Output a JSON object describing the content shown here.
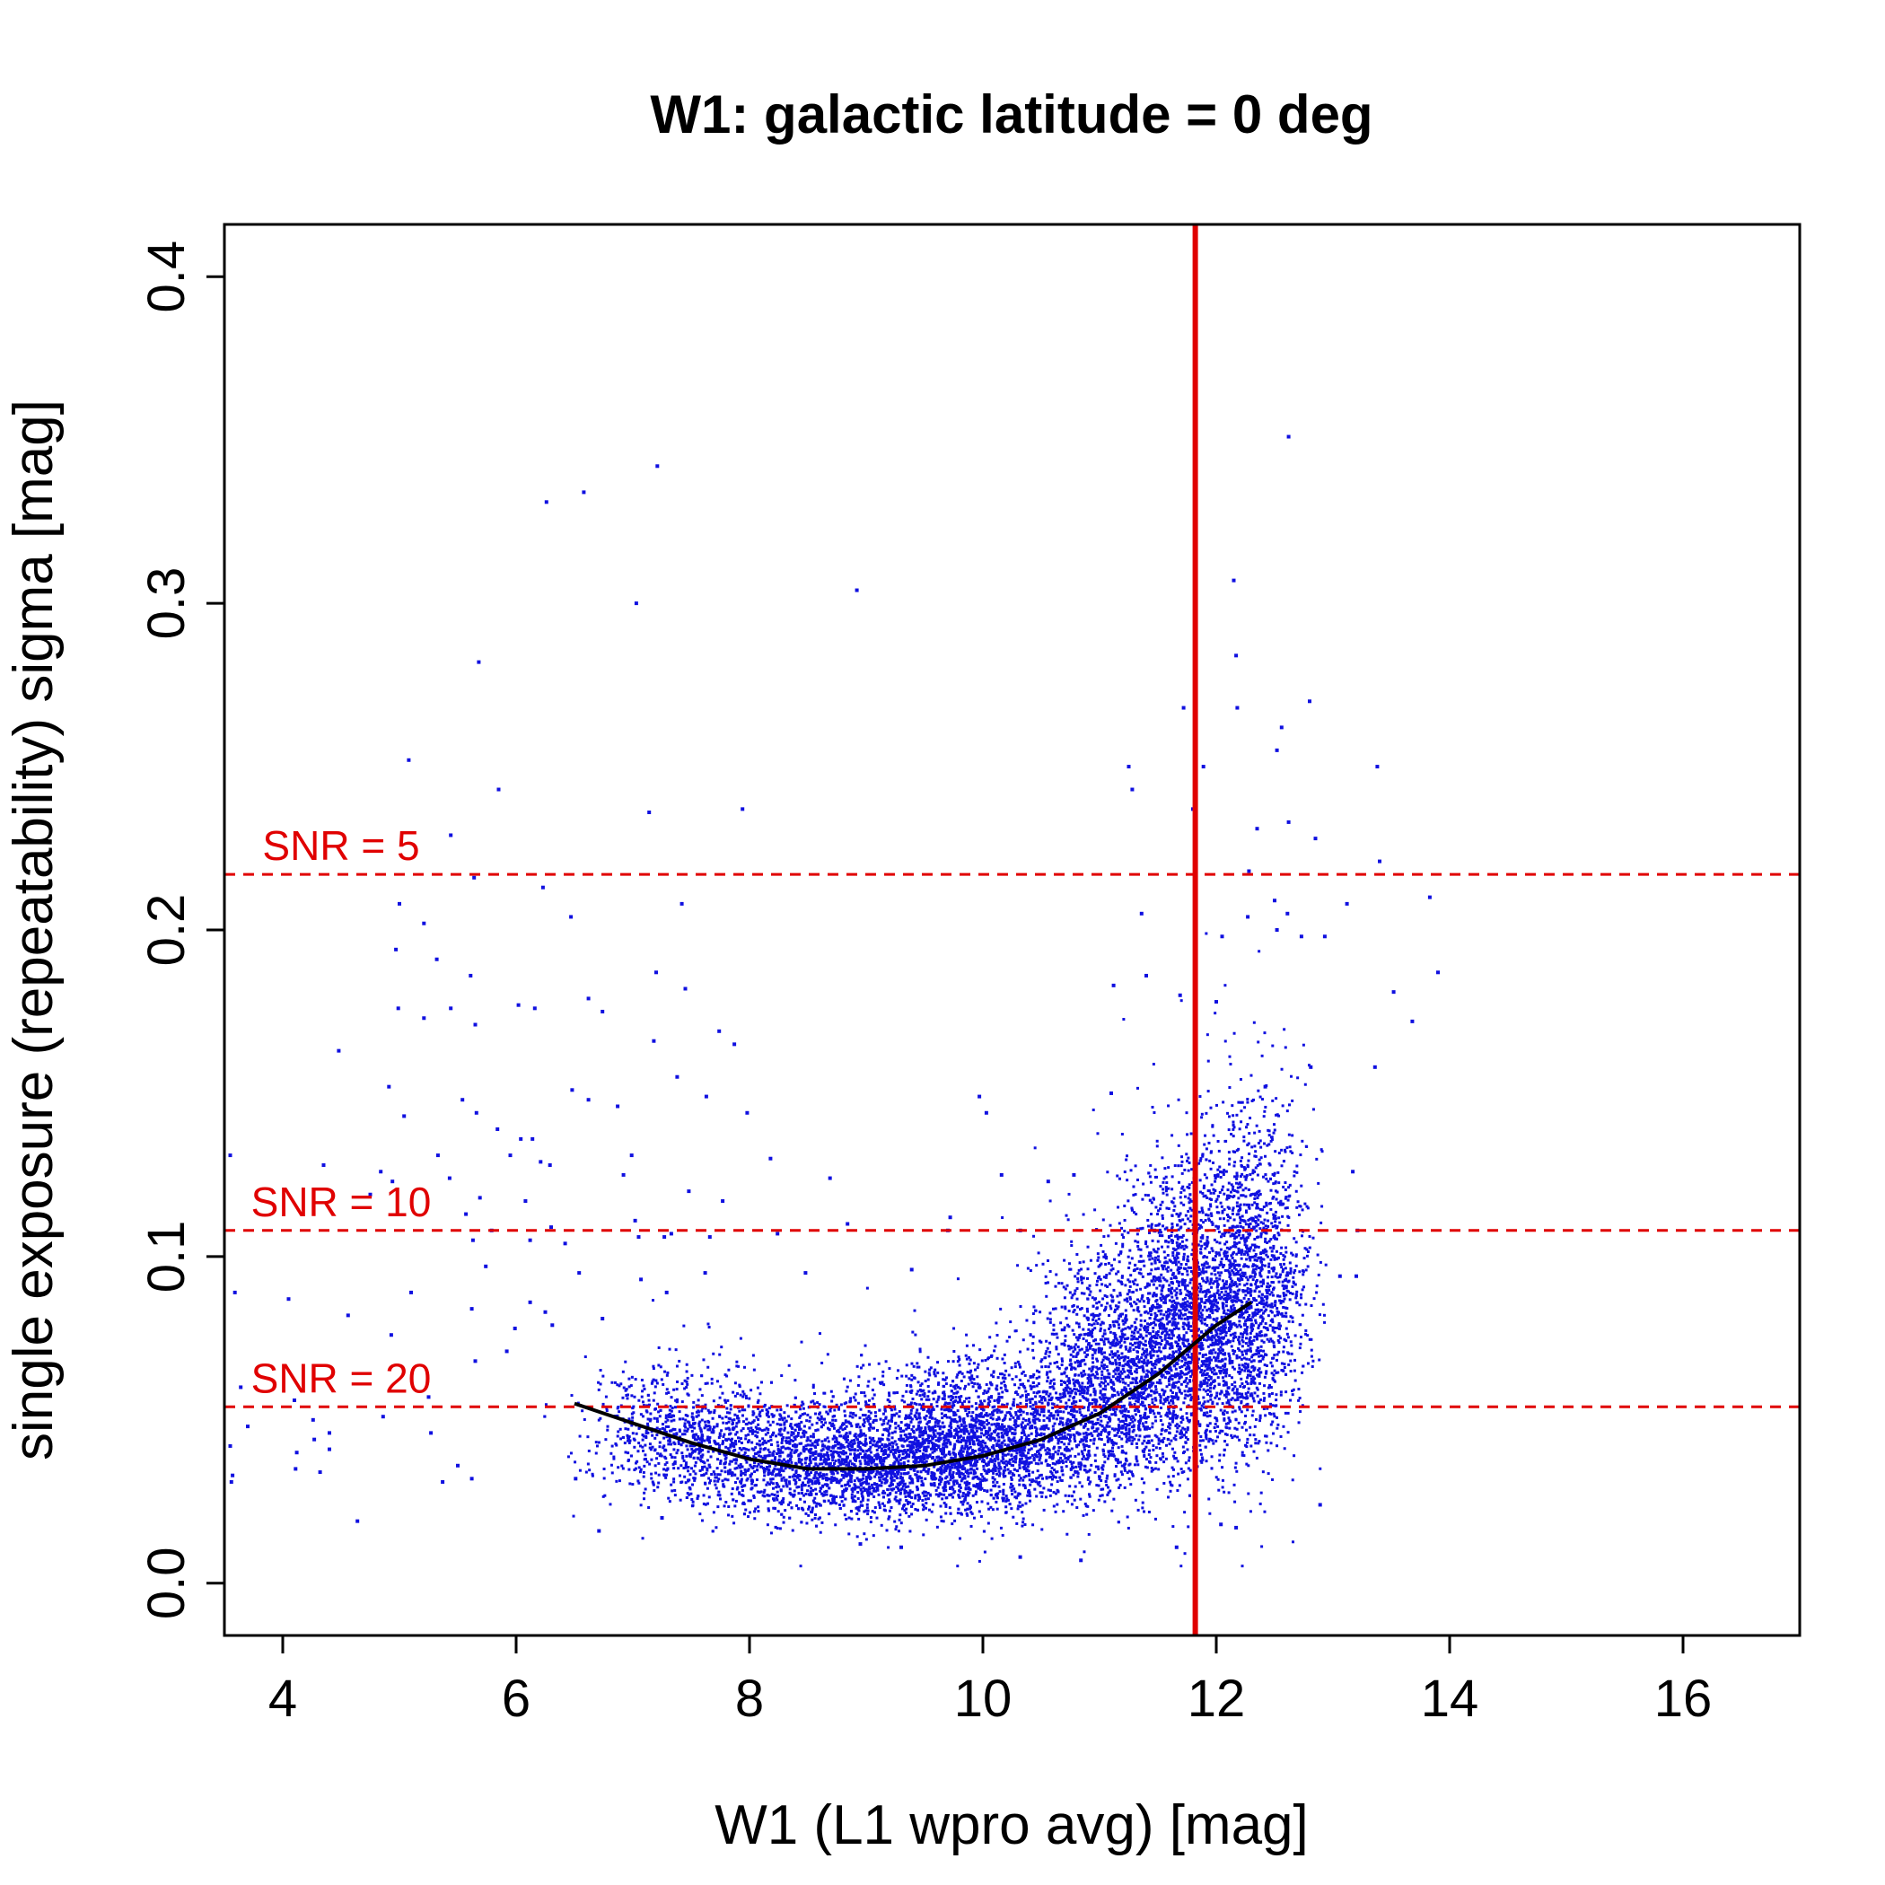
{
  "chart_data": {
    "type": "scatter",
    "title": "W1: galactic latitude = 0 deg",
    "xlabel": "W1 (L1 wpro avg) [mag]",
    "ylabel": "single exposure (repeatability) sigma [mag]",
    "xlim": [
      3.5,
      17.0
    ],
    "ylim": [
      -0.016,
      0.416
    ],
    "x_ticks": [
      4,
      6,
      8,
      10,
      12,
      14,
      16
    ],
    "x_tick_labels": [
      "4",
      "6",
      "8",
      "10",
      "12",
      "14",
      "16"
    ],
    "y_ticks": [
      0.0,
      0.1,
      0.2,
      0.3,
      0.4
    ],
    "y_tick_labels": [
      "0.0",
      "0.1",
      "0.2",
      "0.3",
      "0.4"
    ],
    "grid": false,
    "series": [
      {
        "kind": "points",
        "color": "#1010e0",
        "points": [
          [
            6.26,
            0.331
          ],
          [
            6.58,
            0.334
          ],
          [
            7.21,
            0.342
          ],
          [
            12.62,
            0.351
          ],
          [
            7.03,
            0.3
          ],
          [
            8.92,
            0.304
          ],
          [
            12.15,
            0.307
          ],
          [
            5.68,
            0.282
          ],
          [
            12.17,
            0.284
          ],
          [
            12.18,
            0.268
          ],
          [
            12.8,
            0.27
          ],
          [
            11.72,
            0.268
          ],
          [
            5.08,
            0.252
          ],
          [
            12.52,
            0.255
          ],
          [
            12.56,
            0.262
          ],
          [
            11.25,
            0.25
          ],
          [
            11.89,
            0.25
          ],
          [
            13.38,
            0.25
          ],
          [
            5.85,
            0.243
          ],
          [
            7.94,
            0.237
          ],
          [
            7.14,
            0.236
          ],
          [
            11.28,
            0.243
          ],
          [
            11.8,
            0.237
          ],
          [
            5.44,
            0.229
          ],
          [
            12.62,
            0.233
          ],
          [
            12.85,
            0.228
          ],
          [
            13.4,
            0.221
          ],
          [
            12.35,
            0.231
          ],
          [
            6.23,
            0.213
          ],
          [
            5.64,
            0.216
          ],
          [
            12.28,
            0.218
          ],
          [
            11.36,
            0.205
          ],
          [
            5.0,
            0.208
          ],
          [
            6.47,
            0.204
          ],
          [
            7.42,
            0.208
          ],
          [
            13.12,
            0.208
          ],
          [
            13.83,
            0.21
          ],
          [
            12.27,
            0.204
          ],
          [
            5.21,
            0.202
          ],
          [
            12.5,
            0.209
          ],
          [
            12.61,
            0.205
          ],
          [
            4.97,
            0.194
          ],
          [
            5.32,
            0.191
          ],
          [
            5.61,
            0.186
          ],
          [
            12.73,
            0.198
          ],
          [
            12.93,
            0.198
          ],
          [
            12.52,
            0.2
          ],
          [
            7.2,
            0.187
          ],
          [
            13.9,
            0.187
          ],
          [
            11.4,
            0.186
          ],
          [
            12.05,
            0.198
          ],
          [
            5.44,
            0.176
          ],
          [
            4.99,
            0.176
          ],
          [
            5.21,
            0.173
          ],
          [
            5.65,
            0.171
          ],
          [
            6.02,
            0.177
          ],
          [
            6.16,
            0.176
          ],
          [
            6.62,
            0.179
          ],
          [
            6.74,
            0.175
          ],
          [
            7.45,
            0.182
          ],
          [
            13.52,
            0.181
          ],
          [
            13.68,
            0.172
          ],
          [
            11.12,
            0.183
          ],
          [
            11.69,
            0.18
          ],
          [
            12.0,
            0.178
          ],
          [
            7.18,
            0.166
          ],
          [
            7.87,
            0.165
          ],
          [
            4.48,
            0.163
          ],
          [
            7.74,
            0.169
          ],
          [
            4.91,
            0.152
          ],
          [
            7.38,
            0.155
          ],
          [
            6.48,
            0.151
          ],
          [
            5.54,
            0.148
          ],
          [
            7.63,
            0.149
          ],
          [
            9.97,
            0.149
          ],
          [
            11.1,
            0.15
          ],
          [
            12.81,
            0.158
          ],
          [
            13.36,
            0.158
          ],
          [
            12.42,
            0.152
          ],
          [
            5.66,
            0.144
          ],
          [
            5.04,
            0.143
          ],
          [
            6.62,
            0.148
          ],
          [
            6.87,
            0.146
          ],
          [
            7.98,
            0.144
          ],
          [
            10.03,
            0.144
          ],
          [
            5.84,
            0.139
          ],
          [
            6.14,
            0.136
          ],
          [
            5.95,
            0.131
          ],
          [
            3.55,
            0.131
          ],
          [
            5.33,
            0.131
          ],
          [
            4.35,
            0.128
          ],
          [
            4.84,
            0.126
          ],
          [
            6.29,
            0.128
          ],
          [
            6.21,
            0.129
          ],
          [
            6.04,
            0.136
          ],
          [
            6.99,
            0.131
          ],
          [
            8.18,
            0.13
          ],
          [
            10.78,
            0.125
          ],
          [
            13.17,
            0.126
          ],
          [
            10.16,
            0.125
          ],
          [
            7.48,
            0.12
          ],
          [
            7.77,
            0.117
          ],
          [
            10.56,
            0.123
          ],
          [
            4.94,
            0.123
          ],
          [
            4.75,
            0.119
          ],
          [
            5.43,
            0.124
          ],
          [
            6.92,
            0.125
          ],
          [
            5.69,
            0.118
          ],
          [
            6.08,
            0.117
          ],
          [
            8.69,
            0.124
          ],
          [
            5.57,
            0.113
          ],
          [
            5.79,
            0.108
          ],
          [
            6.12,
            0.105
          ],
          [
            6.42,
            0.104
          ],
          [
            6.3,
            0.109
          ],
          [
            5.63,
            0.105
          ],
          [
            7.05,
            0.106
          ],
          [
            7.33,
            0.107
          ],
          [
            7.02,
            0.111
          ],
          [
            7.27,
            0.106
          ],
          [
            7.66,
            0.106
          ],
          [
            8.24,
            0.107
          ],
          [
            8.84,
            0.11
          ],
          [
            9.7,
            0.108
          ],
          [
            9.72,
            0.112
          ],
          [
            10.32,
            0.108
          ],
          [
            11.47,
            0.108
          ],
          [
            13.21,
            0.108
          ],
          [
            7.62,
            0.095
          ],
          [
            3.59,
            0.089
          ],
          [
            4.05,
            0.087
          ],
          [
            5.1,
            0.089
          ],
          [
            5.74,
            0.097
          ],
          [
            6.12,
            0.086
          ],
          [
            6.25,
            0.083
          ],
          [
            6.54,
            0.095
          ],
          [
            7.07,
            0.093
          ],
          [
            7.29,
            0.089
          ],
          [
            8.48,
            0.095
          ],
          [
            9.39,
            0.096
          ],
          [
            13.06,
            0.094
          ],
          [
            13.2,
            0.094
          ],
          [
            4.56,
            0.082
          ],
          [
            5.62,
            0.084
          ],
          [
            6.31,
            0.079
          ],
          [
            6.74,
            0.081
          ],
          [
            5.99,
            0.078
          ],
          [
            4.93,
            0.076
          ],
          [
            3.64,
            0.06
          ],
          [
            4.1,
            0.056
          ],
          [
            5.92,
            0.071
          ],
          [
            5.65,
            0.068
          ],
          [
            5.25,
            0.057
          ],
          [
            4.86,
            0.051
          ],
          [
            4.26,
            0.05
          ],
          [
            3.7,
            0.048
          ],
          [
            4.4,
            0.046
          ],
          [
            5.27,
            0.046
          ],
          [
            4.27,
            0.044
          ],
          [
            3.55,
            0.042
          ],
          [
            4.4,
            0.041
          ],
          [
            4.12,
            0.04
          ],
          [
            5.5,
            0.036
          ],
          [
            4.32,
            0.034
          ],
          [
            4.11,
            0.035
          ],
          [
            5.37,
            0.031
          ],
          [
            5.62,
            0.032
          ],
          [
            3.57,
            0.033
          ],
          [
            3.56,
            0.031
          ],
          [
            4.64,
            0.019
          ],
          [
            6.51,
            0.032
          ],
          [
            6.71,
            0.016
          ],
          [
            7.25,
            0.02
          ],
          [
            8.95,
            0.012
          ],
          [
            9.3,
            0.011
          ],
          [
            10.32,
            0.008
          ],
          [
            10.84,
            0.007
          ],
          [
            11.66,
            0.011
          ],
          [
            12.04,
            0.018
          ],
          [
            12.17,
            0.017
          ],
          [
            12.89,
            0.024
          ]
        ]
      },
      {
        "kind": "dense-cloud",
        "color": "#1010e0",
        "clusters": [
          {
            "x_mean": 8.9,
            "x_sd": 0.8,
            "y_mean": 0.036,
            "y_sd": 0.01,
            "count": 3000
          },
          {
            "x_mean": 10.1,
            "x_sd": 0.55,
            "y_mean": 0.044,
            "y_sd": 0.013,
            "count": 1800
          },
          {
            "x_mean": 11.2,
            "x_sd": 0.38,
            "y_mean": 0.062,
            "y_sd": 0.02,
            "count": 1700
          },
          {
            "x_mean": 11.9,
            "x_sd": 0.35,
            "y_mean": 0.08,
            "y_sd": 0.026,
            "count": 2200
          },
          {
            "x_mean": 12.35,
            "x_sd": 0.22,
            "y_mean": 0.092,
            "y_sd": 0.03,
            "count": 900
          },
          {
            "x_mean": 7.4,
            "x_sd": 0.4,
            "y_mean": 0.045,
            "y_sd": 0.011,
            "count": 600
          }
        ]
      },
      {
        "kind": "fit-curve",
        "color": "#000000",
        "x": [
          6.5,
          7.0,
          7.5,
          8.0,
          8.5,
          9.0,
          9.5,
          10.0,
          10.5,
          11.0,
          11.5,
          11.8,
          12.0,
          12.3
        ],
        "y": [
          0.055,
          0.049,
          0.043,
          0.038,
          0.035,
          0.035,
          0.036,
          0.039,
          0.044,
          0.052,
          0.064,
          0.073,
          0.079,
          0.086
        ]
      }
    ],
    "reference_lines": [
      {
        "orientation": "horizontal",
        "value": 0.217,
        "style": "dashed",
        "color": "#e00000",
        "label": "SNR = 5"
      },
      {
        "orientation": "horizontal",
        "value": 0.108,
        "style": "dashed",
        "color": "#e00000",
        "label": "SNR = 10"
      },
      {
        "orientation": "horizontal",
        "value": 0.054,
        "style": "dashed",
        "color": "#e00000",
        "label": "SNR = 20"
      },
      {
        "orientation": "vertical",
        "value": 11.82,
        "style": "solid",
        "color": "#e00000",
        "label": ""
      }
    ]
  }
}
